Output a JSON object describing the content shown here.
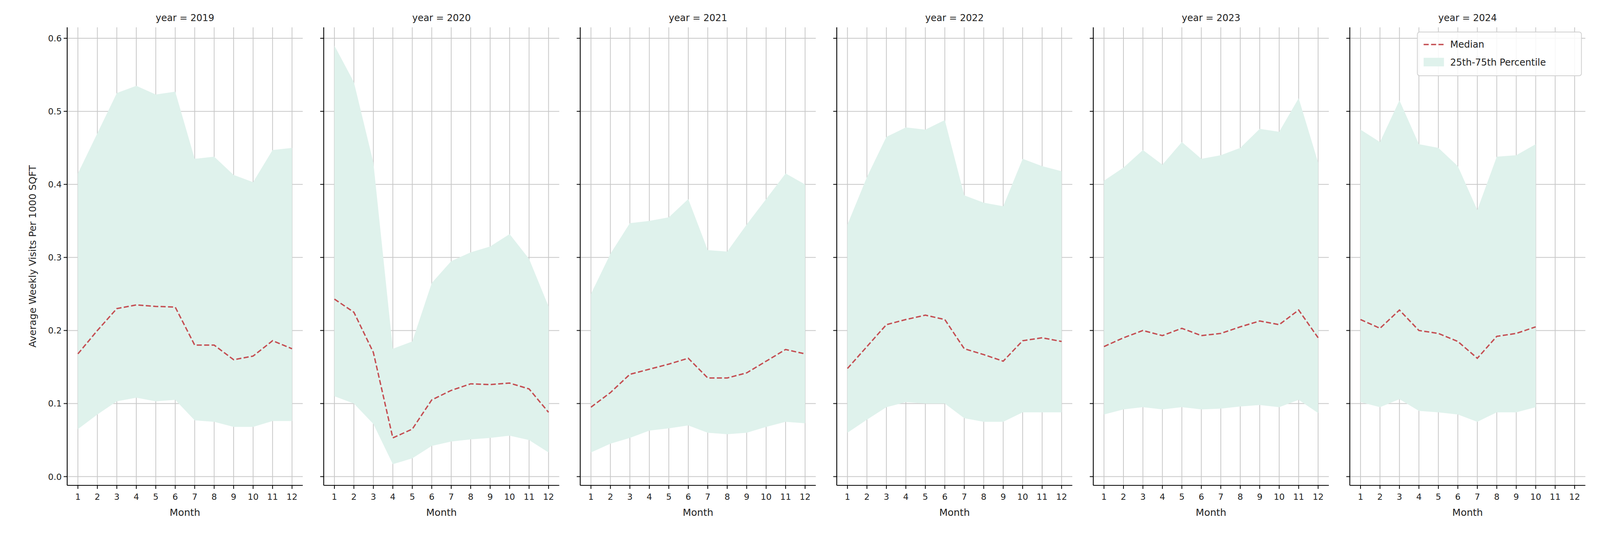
{
  "chart_data": [
    {
      "type": "line",
      "title": "year = 2019",
      "x_label": "Month",
      "y_label": "Average Weekly Visits Per 1000 SQFT",
      "x": [
        1,
        2,
        3,
        4,
        5,
        6,
        7,
        8,
        9,
        10,
        11,
        12
      ],
      "series": [
        {
          "name": "Median",
          "type": "line",
          "color": "#c44e52",
          "line_style": "dashed",
          "values": [
            0.168,
            0.2,
            0.23,
            0.235,
            0.233,
            0.232,
            0.18,
            0.18,
            0.16,
            0.165,
            0.186,
            0.175
          ]
        },
        {
          "name": "25th-75th Percentile",
          "type": "band",
          "color": "#dff2ec",
          "lower": [
            0.065,
            0.085,
            0.103,
            0.108,
            0.103,
            0.105,
            0.077,
            0.075,
            0.068,
            0.068,
            0.076,
            0.076
          ],
          "upper": [
            0.415,
            0.47,
            0.525,
            0.535,
            0.523,
            0.527,
            0.435,
            0.438,
            0.413,
            0.403,
            0.447,
            0.45
          ]
        }
      ],
      "xlim": [
        0.45,
        12.55
      ],
      "xticks": [
        1,
        2,
        3,
        4,
        5,
        6,
        7,
        8,
        9,
        10,
        11,
        12
      ],
      "ylim": [
        -0.012,
        0.615
      ],
      "yticks": [
        {
          "value": 0,
          "label": "0.0"
        },
        0.1,
        0.2,
        0.3,
        0.4,
        0.5,
        0.6
      ],
      "grid": true
    },
    {
      "type": "line",
      "title": "year = 2020",
      "x_label": "Month",
      "x": [
        1,
        2,
        3,
        4,
        5,
        6,
        7,
        8,
        9,
        10,
        11,
        12
      ],
      "series": [
        {
          "name": "Median",
          "type": "line",
          "color": "#c44e52",
          "line_style": "dashed",
          "values": [
            0.243,
            0.225,
            0.17,
            0.053,
            0.065,
            0.105,
            0.118,
            0.127,
            0.126,
            0.128,
            0.12,
            0.088
          ]
        },
        {
          "name": "25th-75th Percentile",
          "type": "band",
          "color": "#dff2ec",
          "lower": [
            0.11,
            0.1,
            0.072,
            0.017,
            0.025,
            0.042,
            0.048,
            0.051,
            0.053,
            0.056,
            0.05,
            0.033
          ],
          "upper": [
            0.59,
            0.54,
            0.43,
            0.175,
            0.185,
            0.265,
            0.295,
            0.307,
            0.315,
            0.332,
            0.298,
            0.233
          ]
        }
      ],
      "xlim": [
        0.45,
        12.55
      ],
      "xticks": [
        1,
        2,
        3,
        4,
        5,
        6,
        7,
        8,
        9,
        10,
        11,
        12
      ],
      "ylim": [
        -0.012,
        0.615
      ],
      "yticks": [
        {
          "value": 0,
          "label": "0.0"
        },
        0.1,
        0.2,
        0.3,
        0.4,
        0.5,
        0.6
      ],
      "grid": true,
      "tick_labels": "x"
    },
    {
      "type": "line",
      "title": "year = 2021",
      "x_label": "Month",
      "x": [
        1,
        2,
        3,
        4,
        5,
        6,
        7,
        8,
        9,
        10,
        11,
        12
      ],
      "series": [
        {
          "name": "Median",
          "type": "line",
          "color": "#c44e52",
          "line_style": "dashed",
          "values": [
            0.095,
            0.115,
            0.14,
            0.147,
            0.154,
            0.162,
            0.135,
            0.135,
            0.142,
            0.158,
            0.174,
            0.168
          ]
        },
        {
          "name": "25th-75th Percentile",
          "type": "band",
          "color": "#dff2ec",
          "lower": [
            0.033,
            0.045,
            0.053,
            0.063,
            0.066,
            0.07,
            0.06,
            0.058,
            0.06,
            0.068,
            0.075,
            0.073
          ],
          "upper": [
            0.25,
            0.305,
            0.347,
            0.35,
            0.355,
            0.38,
            0.31,
            0.308,
            0.345,
            0.38,
            0.415,
            0.4
          ]
        }
      ],
      "xlim": [
        0.45,
        12.55
      ],
      "xticks": [
        1,
        2,
        3,
        4,
        5,
        6,
        7,
        8,
        9,
        10,
        11,
        12
      ],
      "ylim": [
        -0.012,
        0.615
      ],
      "yticks": [
        {
          "value": 0,
          "label": "0.0"
        },
        0.1,
        0.2,
        0.3,
        0.4,
        0.5,
        0.6
      ],
      "grid": true,
      "tick_labels": "x"
    },
    {
      "type": "line",
      "title": "year = 2022",
      "x_label": "Month",
      "x": [
        1,
        2,
        3,
        4,
        5,
        6,
        7,
        8,
        9,
        10,
        11,
        12
      ],
      "series": [
        {
          "name": "Median",
          "type": "line",
          "color": "#c44e52",
          "line_style": "dashed",
          "values": [
            0.148,
            0.178,
            0.208,
            0.215,
            0.221,
            0.215,
            0.175,
            0.167,
            0.158,
            0.186,
            0.19,
            0.185
          ]
        },
        {
          "name": "25th-75th Percentile",
          "type": "band",
          "color": "#dff2ec",
          "lower": [
            0.06,
            0.078,
            0.095,
            0.102,
            0.1,
            0.1,
            0.08,
            0.075,
            0.075,
            0.088,
            0.088,
            0.088
          ],
          "upper": [
            0.345,
            0.41,
            0.465,
            0.478,
            0.475,
            0.488,
            0.385,
            0.375,
            0.37,
            0.435,
            0.425,
            0.418
          ]
        }
      ],
      "xlim": [
        0.45,
        12.55
      ],
      "xticks": [
        1,
        2,
        3,
        4,
        5,
        6,
        7,
        8,
        9,
        10,
        11,
        12
      ],
      "ylim": [
        -0.012,
        0.615
      ],
      "yticks": [
        {
          "value": 0,
          "label": "0.0"
        },
        0.1,
        0.2,
        0.3,
        0.4,
        0.5,
        0.6
      ],
      "grid": true,
      "tick_labels": "x"
    },
    {
      "type": "line",
      "title": "year = 2023",
      "x_label": "Month",
      "x": [
        1,
        2,
        3,
        4,
        5,
        6,
        7,
        8,
        9,
        10,
        11,
        12
      ],
      "series": [
        {
          "name": "Median",
          "type": "line",
          "color": "#c44e52",
          "line_style": "dashed",
          "values": [
            0.178,
            0.19,
            0.2,
            0.193,
            0.203,
            0.193,
            0.196,
            0.205,
            0.213,
            0.208,
            0.228,
            0.19
          ]
        },
        {
          "name": "25th-75th Percentile",
          "type": "band",
          "color": "#dff2ec",
          "lower": [
            0.085,
            0.092,
            0.095,
            0.092,
            0.095,
            0.092,
            0.093,
            0.096,
            0.098,
            0.095,
            0.105,
            0.087
          ],
          "upper": [
            0.405,
            0.423,
            0.447,
            0.427,
            0.458,
            0.435,
            0.44,
            0.45,
            0.476,
            0.472,
            0.518,
            0.43
          ]
        }
      ],
      "xlim": [
        0.45,
        12.55
      ],
      "xticks": [
        1,
        2,
        3,
        4,
        5,
        6,
        7,
        8,
        9,
        10,
        11,
        12
      ],
      "ylim": [
        -0.012,
        0.615
      ],
      "yticks": [
        {
          "value": 0,
          "label": "0.0"
        },
        0.1,
        0.2,
        0.3,
        0.4,
        0.5,
        0.6
      ],
      "grid": true,
      "tick_labels": "x"
    },
    {
      "type": "line",
      "title": "year = 2024",
      "x_label": "Month",
      "x": [
        1,
        2,
        3,
        4,
        5,
        6,
        7,
        8,
        9,
        10
      ],
      "series": [
        {
          "name": "Median",
          "type": "line",
          "color": "#c44e52",
          "line_style": "dashed",
          "values": [
            0.215,
            0.203,
            0.228,
            0.2,
            0.196,
            0.185,
            0.162,
            0.192,
            0.196,
            0.205
          ]
        },
        {
          "name": "25th-75th Percentile",
          "type": "band",
          "color": "#dff2ec",
          "lower": [
            0.102,
            0.095,
            0.106,
            0.09,
            0.088,
            0.085,
            0.075,
            0.088,
            0.088,
            0.095
          ],
          "upper": [
            0.475,
            0.458,
            0.515,
            0.455,
            0.45,
            0.425,
            0.365,
            0.438,
            0.44,
            0.455
          ]
        }
      ],
      "xlim": [
        0.45,
        12.55
      ],
      "xticks": [
        1,
        2,
        3,
        4,
        5,
        6,
        7,
        8,
        9,
        10,
        11,
        12
      ],
      "ylim": [
        -0.012,
        0.615
      ],
      "yticks": [
        {
          "value": 0,
          "label": "0.0"
        },
        0.1,
        0.2,
        0.3,
        0.4,
        0.5,
        0.6
      ],
      "grid": true,
      "tick_labels": "x",
      "legend": "upper right"
    }
  ]
}
